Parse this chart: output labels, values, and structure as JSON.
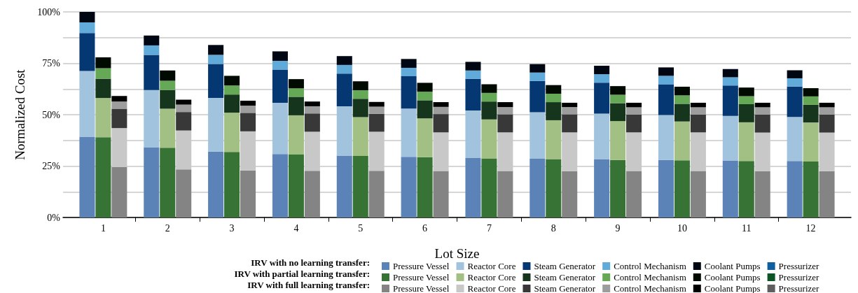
{
  "chart_data": {
    "type": "bar",
    "stacked": true,
    "xlabel": "Lot Size",
    "ylabel": "Normalized Cost",
    "categories": [
      null,
      null,
      "1",
      null,
      null,
      null,
      "2",
      null,
      null,
      null,
      "3",
      null,
      null,
      null,
      "4",
      null,
      null,
      null,
      "5",
      null,
      null,
      null,
      "6",
      null,
      null,
      null,
      "7",
      null,
      null,
      null,
      "8",
      null,
      null,
      null,
      "9",
      null,
      null,
      null,
      "10",
      null,
      null,
      null,
      "11",
      null,
      null,
      null,
      "12",
      null,
      null
    ],
    "ylim": [
      0,
      100
    ],
    "yticks": [
      {
        "value": 0,
        "label": "0%"
      },
      {
        "value": 12.5,
        "label": null
      },
      {
        "value": 25,
        "label": "25%"
      },
      {
        "value": 37.5,
        "label": null
      },
      {
        "value": 50,
        "label": "50%"
      },
      {
        "value": 62.5,
        "label": null
      },
      {
        "value": 75,
        "label": "75%"
      },
      {
        "value": 87.5,
        "label": null
      },
      {
        "value": 100,
        "label": "100%"
      }
    ],
    "grid": "y",
    "legend": "bottom",
    "annotations": [
      "IRV with no learning transfer:",
      "IRV with partial learning transfer:",
      "IRV with full learning transfer:"
    ],
    "series": [
      {
        "name": "Pressure Vessel",
        "color": "#5b83b7",
        "values": [
          null,
          39.3,
          null,
          null,
          null,
          34.2,
          null,
          null,
          null,
          32.1,
          null,
          null,
          null,
          30.9,
          null,
          null,
          null,
          30.1,
          null,
          null,
          null,
          29.5,
          null,
          null,
          null,
          29.1,
          null,
          null,
          null,
          28.6,
          null,
          null,
          null,
          28.4,
          null,
          null,
          null,
          28.0,
          null,
          null,
          null,
          27.7,
          null,
          null,
          null,
          27.5,
          null,
          null,
          null
        ]
      },
      {
        "name": "Reactor Core",
        "color": "#a1c3dd",
        "values": [
          null,
          32.0,
          null,
          null,
          null,
          27.8,
          null,
          null,
          null,
          26.1,
          null,
          null,
          null,
          24.9,
          null,
          null,
          null,
          24.0,
          null,
          null,
          null,
          23.5,
          null,
          null,
          null,
          22.9,
          null,
          null,
          null,
          22.6,
          null,
          null,
          null,
          22.1,
          null,
          null,
          null,
          21.8,
          null,
          null,
          null,
          21.7,
          null,
          null,
          null,
          21.4,
          null,
          null,
          null
        ]
      },
      {
        "name": "Steam Generator",
        "color": "#053773",
        "values": [
          null,
          18.4,
          null,
          null,
          null,
          17.1,
          null,
          null,
          null,
          16.5,
          null,
          null,
          null,
          16.1,
          null,
          null,
          null,
          15.9,
          null,
          null,
          null,
          15.7,
          null,
          null,
          null,
          15.4,
          null,
          null,
          null,
          15.2,
          null,
          null,
          null,
          15.1,
          null,
          null,
          null,
          15.0,
          null,
          null,
          null,
          14.8,
          null,
          null,
          null,
          14.8,
          null,
          null,
          null
        ]
      },
      {
        "name": "Control Mechanism",
        "color": "#61abdb",
        "values": [
          null,
          5.2,
          null,
          null,
          null,
          4.6,
          null,
          null,
          null,
          4.4,
          null,
          null,
          null,
          4.3,
          null,
          null,
          null,
          4.2,
          null,
          null,
          null,
          4.1,
          null,
          null,
          null,
          4.1,
          null,
          null,
          null,
          4.1,
          null,
          null,
          null,
          4.1,
          null,
          null,
          null,
          4.1,
          null,
          null,
          null,
          4.0,
          null,
          null,
          null,
          4.0,
          null,
          null,
          null
        ]
      },
      {
        "name": "Coolant Pumps",
        "color": "#000713",
        "values": [
          null,
          5.1,
          null,
          null,
          null,
          4.8,
          null,
          null,
          null,
          4.8,
          null,
          null,
          null,
          4.6,
          null,
          null,
          null,
          4.3,
          null,
          null,
          null,
          4.3,
          null,
          null,
          null,
          4.2,
          null,
          null,
          null,
          4.1,
          null,
          null,
          null,
          4.1,
          null,
          null,
          null,
          4.1,
          null,
          null,
          null,
          4.0,
          null,
          null,
          null,
          3.9,
          null,
          null,
          null
        ]
      },
      {
        "name": "Pressurizer",
        "color": "#0d5fa0",
        "values": [
          null,
          null,
          null,
          null,
          null,
          null,
          null,
          null,
          null,
          null,
          null,
          null,
          null,
          null,
          null,
          null,
          null,
          null,
          null,
          null,
          null,
          null,
          null,
          null,
          null,
          null,
          null,
          null,
          null,
          null,
          null,
          null,
          null,
          null,
          null,
          null,
          null,
          null,
          null,
          null,
          null,
          null,
          null,
          null,
          null,
          null,
          null,
          null,
          null
        ]
      },
      {
        "name": "Pressure Vessel",
        "color": "#387336",
        "values": [
          null,
          null,
          39.0,
          null,
          null,
          null,
          33.9,
          null,
          null,
          null,
          31.9,
          null,
          null,
          null,
          30.6,
          null,
          null,
          null,
          29.9,
          null,
          null,
          null,
          29.3,
          null,
          null,
          null,
          28.7,
          null,
          null,
          null,
          28.4,
          null,
          null,
          null,
          28.0,
          null,
          null,
          null,
          27.8,
          null,
          null,
          null,
          27.5,
          null,
          null,
          null,
          27.2,
          null,
          null
        ]
      },
      {
        "name": "Reactor Core",
        "color": "#a2bf84",
        "values": [
          null,
          null,
          19.1,
          null,
          null,
          null,
          19.0,
          null,
          null,
          null,
          19.1,
          null,
          null,
          null,
          19.1,
          null,
          null,
          null,
          18.9,
          null,
          null,
          null,
          18.9,
          null,
          null,
          null,
          19.0,
          null,
          null,
          null,
          18.9,
          null,
          null,
          null,
          18.9,
          null,
          null,
          null,
          18.9,
          null,
          null,
          null,
          18.8,
          null,
          null,
          null,
          19.0,
          null,
          null
        ]
      },
      {
        "name": "Steam Generator",
        "color": "#15361c",
        "values": [
          null,
          null,
          9.4,
          null,
          null,
          null,
          9.1,
          null,
          null,
          null,
          8.8,
          null,
          null,
          null,
          9.0,
          null,
          null,
          null,
          8.9,
          null,
          null,
          null,
          8.8,
          null,
          null,
          null,
          8.7,
          null,
          null,
          null,
          8.8,
          null,
          null,
          null,
          8.7,
          null,
          null,
          null,
          8.6,
          null,
          null,
          null,
          8.8,
          null,
          null,
          null,
          8.6,
          null,
          null
        ]
      },
      {
        "name": "Control Mechanism",
        "color": "#65a855",
        "values": [
          null,
          null,
          5.1,
          null,
          null,
          null,
          4.5,
          null,
          null,
          null,
          4.4,
          null,
          null,
          null,
          4.1,
          null,
          null,
          null,
          4.2,
          null,
          null,
          null,
          4.2,
          null,
          null,
          null,
          4.2,
          null,
          null,
          null,
          4.1,
          null,
          null,
          null,
          4.1,
          null,
          null,
          null,
          4.1,
          null,
          null,
          null,
          3.9,
          null,
          null,
          null,
          4.1,
          null,
          null
        ]
      },
      {
        "name": "Coolant Pumps",
        "color": "#000a00",
        "values": [
          null,
          null,
          5.3,
          null,
          null,
          null,
          5.0,
          null,
          null,
          null,
          4.7,
          null,
          null,
          null,
          4.5,
          null,
          null,
          null,
          4.3,
          null,
          null,
          null,
          4.3,
          null,
          null,
          null,
          4.2,
          null,
          null,
          null,
          4.2,
          null,
          null,
          null,
          4.2,
          null,
          null,
          null,
          4.2,
          null,
          null,
          null,
          4.2,
          null,
          null,
          null,
          4.0,
          null,
          null
        ]
      },
      {
        "name": "Pressurizer",
        "color": "#0c5625",
        "values": [
          null,
          null,
          null,
          null,
          null,
          null,
          null,
          null,
          null,
          null,
          null,
          null,
          null,
          null,
          null,
          null,
          null,
          null,
          null,
          null,
          null,
          null,
          null,
          null,
          null,
          null,
          null,
          null,
          null,
          null,
          null,
          null,
          null,
          null,
          null,
          null,
          null,
          null,
          null,
          null,
          null,
          null,
          null,
          null,
          null,
          null,
          null,
          null,
          null
        ]
      },
      {
        "name": "Pressure Vessel",
        "color": "#848484",
        "values": [
          null,
          null,
          null,
          24.5,
          null,
          null,
          null,
          23.4,
          null,
          null,
          null,
          22.9,
          null,
          null,
          null,
          22.7,
          null,
          null,
          null,
          22.7,
          null,
          null,
          null,
          22.6,
          null,
          null,
          null,
          22.6,
          null,
          null,
          null,
          22.5,
          null,
          null,
          null,
          22.6,
          null,
          null,
          null,
          22.6,
          null,
          null,
          null,
          22.5,
          null,
          null,
          null,
          22.5,
          null
        ]
      },
      {
        "name": "Reactor Core",
        "color": "#c8c8c8",
        "values": [
          null,
          null,
          null,
          19.0,
          null,
          null,
          null,
          18.9,
          null,
          null,
          null,
          19.0,
          null,
          null,
          null,
          19.0,
          null,
          null,
          null,
          19.0,
          null,
          null,
          null,
          18.8,
          null,
          null,
          null,
          18.8,
          null,
          null,
          null,
          18.9,
          null,
          null,
          null,
          18.8,
          null,
          null,
          null,
          18.8,
          null,
          null,
          null,
          18.8,
          null,
          null,
          null,
          18.8,
          null
        ]
      },
      {
        "name": "Steam Generator",
        "color": "#383838",
        "values": [
          null,
          null,
          null,
          9.4,
          null,
          null,
          null,
          9.0,
          null,
          null,
          null,
          9.0,
          null,
          null,
          null,
          8.9,
          null,
          null,
          null,
          8.7,
          null,
          null,
          null,
          8.9,
          null,
          null,
          null,
          8.8,
          null,
          null,
          null,
          8.8,
          null,
          null,
          null,
          8.7,
          null,
          null,
          null,
          8.7,
          null,
          null,
          null,
          8.8,
          null,
          null,
          null,
          8.8,
          null
        ]
      },
      {
        "name": "Control Mechanism",
        "color": "#9d9d9d",
        "values": [
          null,
          null,
          null,
          3.5,
          null,
          null,
          null,
          3.6,
          null,
          null,
          null,
          3.5,
          null,
          null,
          null,
          3.5,
          null,
          null,
          null,
          3.5,
          null,
          null,
          null,
          3.5,
          null,
          null,
          null,
          3.5,
          null,
          null,
          null,
          3.5,
          null,
          null,
          null,
          3.5,
          null,
          null,
          null,
          3.5,
          null,
          null,
          null,
          3.5,
          null,
          null,
          null,
          3.5,
          null
        ]
      },
      {
        "name": "Coolant Pumps",
        "color": "#000000",
        "values": [
          null,
          null,
          null,
          2.7,
          null,
          null,
          null,
          2.4,
          null,
          null,
          null,
          2.4,
          null,
          null,
          null,
          2.3,
          null,
          null,
          null,
          2.3,
          null,
          null,
          null,
          2.3,
          null,
          null,
          null,
          2.4,
          null,
          null,
          null,
          2.1,
          null,
          null,
          null,
          2.2,
          null,
          null,
          null,
          2.2,
          null,
          null,
          null,
          2.2,
          null,
          null,
          null,
          2.2,
          null
        ]
      },
      {
        "name": "Pressurizer",
        "color": "#5e5e5e",
        "values": [
          null,
          null,
          null,
          null,
          null,
          null,
          null,
          null,
          null,
          null,
          null,
          null,
          null,
          null,
          null,
          null,
          null,
          null,
          null,
          null,
          null,
          null,
          null,
          null,
          null,
          null,
          null,
          null,
          null,
          null,
          null,
          null,
          null,
          null,
          null,
          null,
          null,
          null,
          null,
          null,
          null,
          null,
          null,
          null,
          null,
          null,
          null,
          null,
          null
        ]
      }
    ]
  }
}
